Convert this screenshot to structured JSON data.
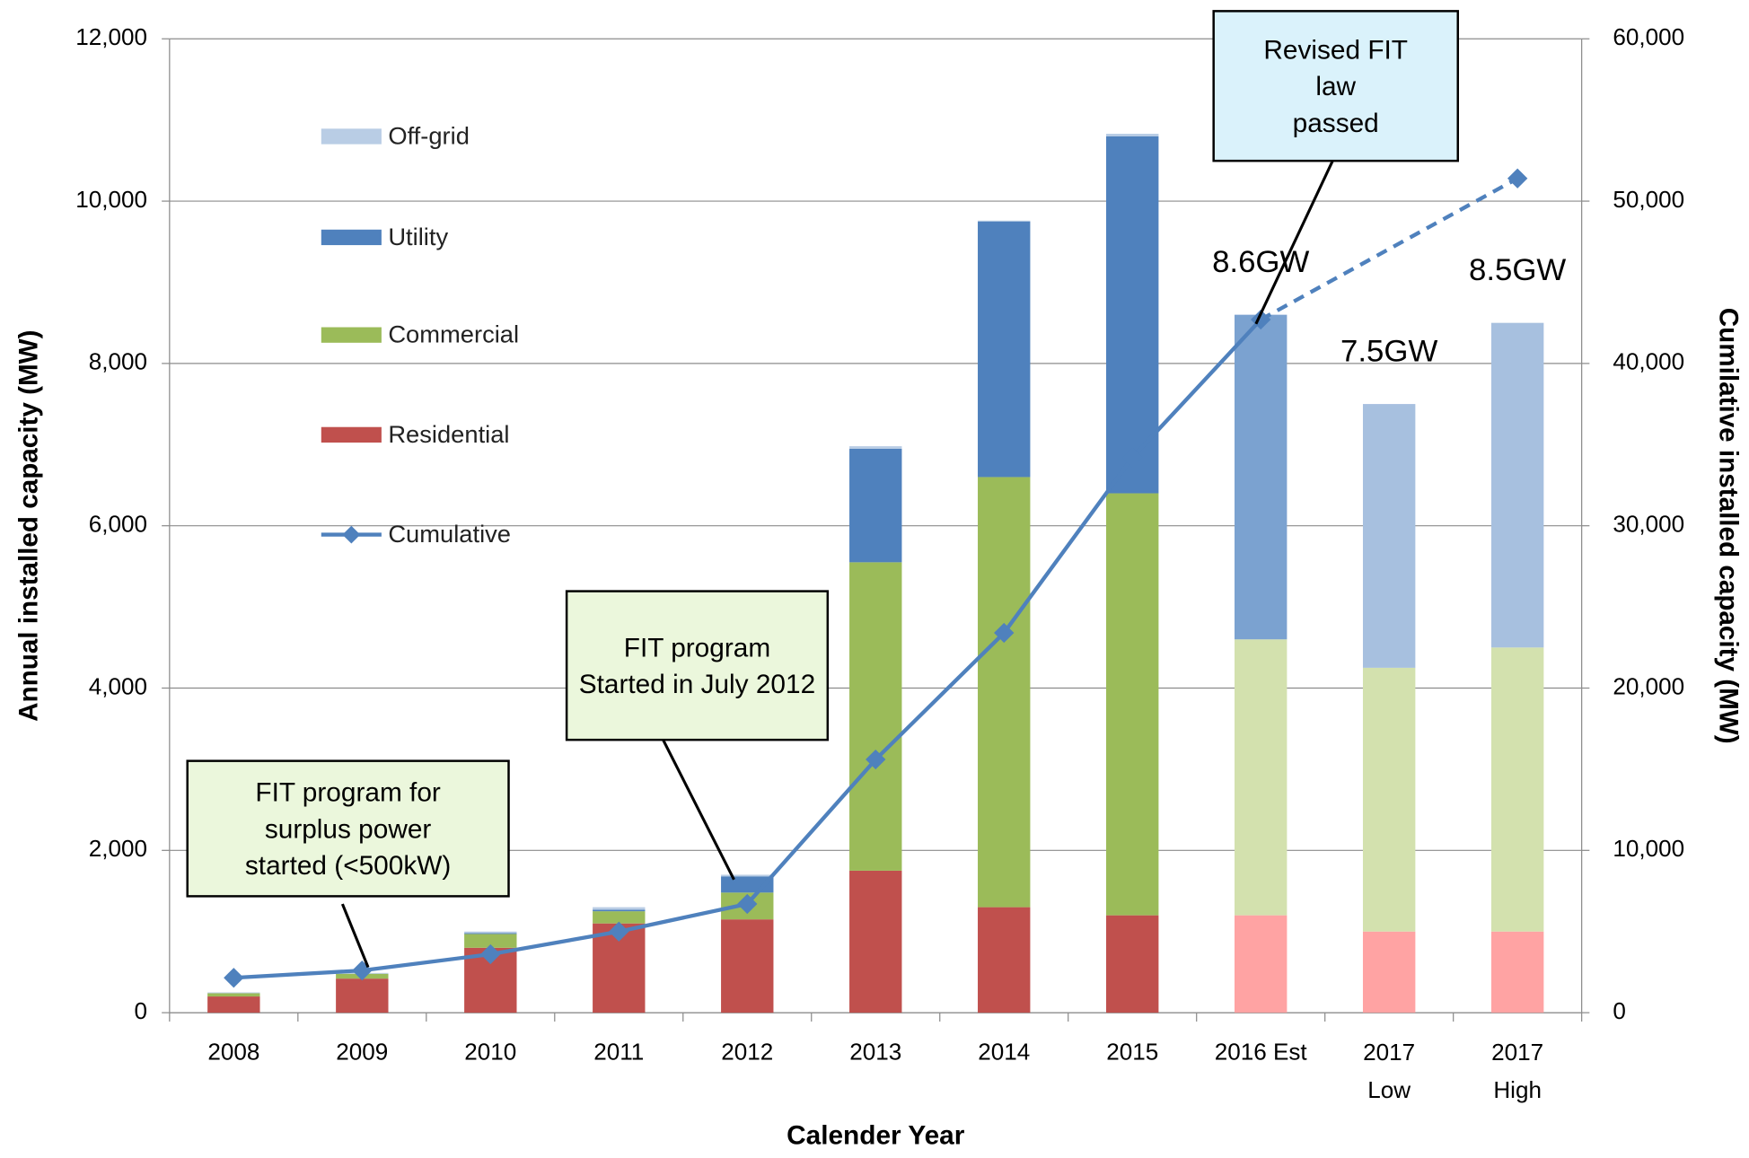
{
  "chart_data": {
    "type": "stacked_bar_line",
    "categories": [
      "2008",
      "2009",
      "2010",
      "2011",
      "2012",
      "2013",
      "2014",
      "2015",
      "2016 Est",
      "2017\nLow",
      "2017\nHigh"
    ],
    "series": [
      {
        "name": "Residential",
        "color": "#c0504d",
        "colors": [
          "#c0504d",
          "#c0504d",
          "#c0504d",
          "#c0504d",
          "#c0504d",
          "#c0504d",
          "#c0504d",
          "#c0504d",
          "#ffa3a3",
          "#ffa3a3",
          "#ffa3a3"
        ],
        "values": [
          200,
          420,
          800,
          1100,
          1150,
          1750,
          1300,
          1200,
          1200,
          1000,
          1000
        ]
      },
      {
        "name": "Commercial",
        "color": "#9bbb59",
        "colors": [
          "#9bbb59",
          "#9bbb59",
          "#9bbb59",
          "#9bbb59",
          "#9bbb59",
          "#9bbb59",
          "#9bbb59",
          "#9bbb59",
          "#d3e1ae",
          "#d3e1ae",
          "#d3e1ae"
        ],
        "values": [
          40,
          60,
          170,
          150,
          330,
          3800,
          5300,
          5200,
          3400,
          3250,
          3500
        ]
      },
      {
        "name": "Utility",
        "color": "#4f81bd",
        "colors": [
          "#4f81bd",
          "#4f81bd",
          "#4f81bd",
          "#4f81bd",
          "#4f81bd",
          "#4f81bd",
          "#4f81bd",
          "#4f81bd",
          "#7ba2d0",
          "#a7c0df",
          "#a7c0df"
        ],
        "values": [
          0,
          0,
          10,
          20,
          200,
          1400,
          3150,
          4400,
          4000,
          3250,
          4000
        ]
      },
      {
        "name": "Off-grid",
        "color": "#b9cde5",
        "colors": [
          "#b9cde5",
          "#b9cde5",
          "#b9cde5",
          "#b9cde5",
          "#b9cde5",
          "#b9cde5",
          "#b9cde5",
          "#b9cde5",
          "#b9cde5",
          "#b9cde5",
          "#b9cde5"
        ],
        "values": [
          10,
          10,
          20,
          30,
          20,
          30,
          10,
          30,
          0,
          0,
          0
        ]
      },
      {
        "name": "Cumulative",
        "color": "#4f81bd",
        "axis": "y2",
        "dashed_from_index": 8,
        "values": [
          2150,
          2600,
          3600,
          5000,
          6700,
          15600,
          23400,
          34200,
          42700,
          null,
          51400
        ]
      }
    ],
    "ylim": [
      0,
      12000
    ],
    "yticks": [
      0,
      {
        "value": 2000,
        "label": "2,000"
      },
      {
        "value": 4000,
        "label": "4,000"
      },
      {
        "value": 6000,
        "label": "6,000"
      },
      {
        "value": 8000,
        "label": "8,000"
      },
      {
        "value": 10000,
        "label": "10,000"
      },
      {
        "value": 12000,
        "label": "12,000"
      }
    ],
    "y2lim": [
      0,
      60000
    ],
    "y2ticks": [
      0,
      {
        "value": 10000,
        "label": "10,000"
      },
      {
        "value": 20000,
        "label": "20,000"
      },
      {
        "value": 30000,
        "label": "30,000"
      },
      {
        "value": 40000,
        "label": "40,000"
      },
      {
        "value": 50000,
        "label": "50,000"
      },
      {
        "value": 60000,
        "label": "60,000"
      }
    ],
    "y_label": "Annual installed capacity (MW)",
    "y2_label": "Cumilative installed capacity (MW)",
    "x_label": "Calender Year",
    "grid": true,
    "legend": [
      "Off-grid",
      "Utility",
      "Commercial",
      "Residential",
      "Cumulative"
    ],
    "legend_position": "upper left",
    "total_labels": [
      {
        "text": "8.6GW",
        "category_index": 8
      },
      {
        "text": "7.5GW",
        "category_index": 9
      },
      {
        "text": "8.5GW",
        "category_index": 10
      }
    ],
    "callouts": [
      {
        "text": "FIT program for\nsurplus power\nstarted (<500kW)",
        "fill": "#ebf7dc"
      },
      {
        "text": "FIT program\nStarted in July 2012",
        "fill": "#ebf7dc"
      },
      {
        "text": "Revised FIT\nlaw\npassed",
        "fill": "#daf2fb"
      }
    ]
  }
}
